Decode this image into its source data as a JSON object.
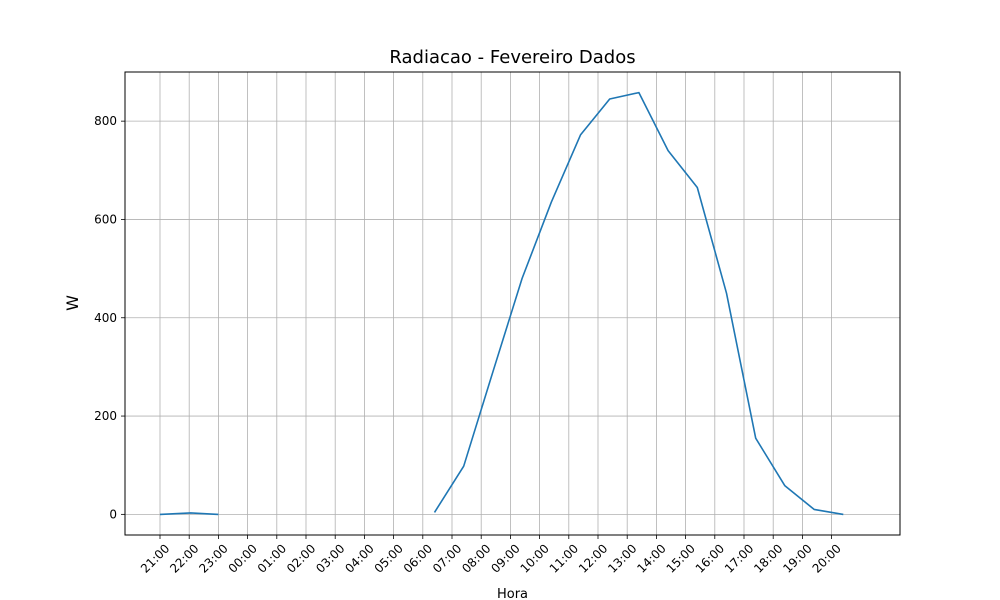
{
  "chart_data": {
    "type": "line",
    "title": "Radiacao - Fevereiro Dados",
    "xlabel": "Hora",
    "ylabel": "W",
    "x_ticks": [
      "21:00",
      "22:00",
      "23:00",
      "00:00",
      "01:00",
      "02:00",
      "03:00",
      "04:00",
      "05:00",
      "06:00",
      "07:00",
      "08:00",
      "09:00",
      "10:00",
      "11:00",
      "12:00",
      "13:00",
      "14:00",
      "15:00",
      "16:00",
      "17:00",
      "18:00",
      "19:00",
      "20:00"
    ],
    "y_ticks": [
      0,
      200,
      400,
      600,
      800
    ],
    "ylim": [
      -42,
      900
    ],
    "grid": true,
    "series": [
      {
        "color": "#1f77b4",
        "segments": [
          {
            "points": [
              [
                21.0,
                0
              ],
              [
                22.05,
                3
              ],
              [
                23.0,
                0
              ]
            ]
          },
          {
            "points": [
              [
                6.4,
                4
              ],
              [
                7.4,
                98
              ],
              [
                8.4,
                290
              ],
              [
                9.4,
                480
              ],
              [
                10.4,
                635
              ],
              [
                11.4,
                772
              ],
              [
                12.4,
                845
              ],
              [
                13.4,
                858
              ],
              [
                14.4,
                740
              ],
              [
                15.4,
                665
              ],
              [
                16.4,
                450
              ],
              [
                17.4,
                155
              ],
              [
                18.4,
                58
              ],
              [
                19.4,
                10
              ],
              [
                20.4,
                0
              ]
            ]
          }
        ]
      }
    ]
  }
}
